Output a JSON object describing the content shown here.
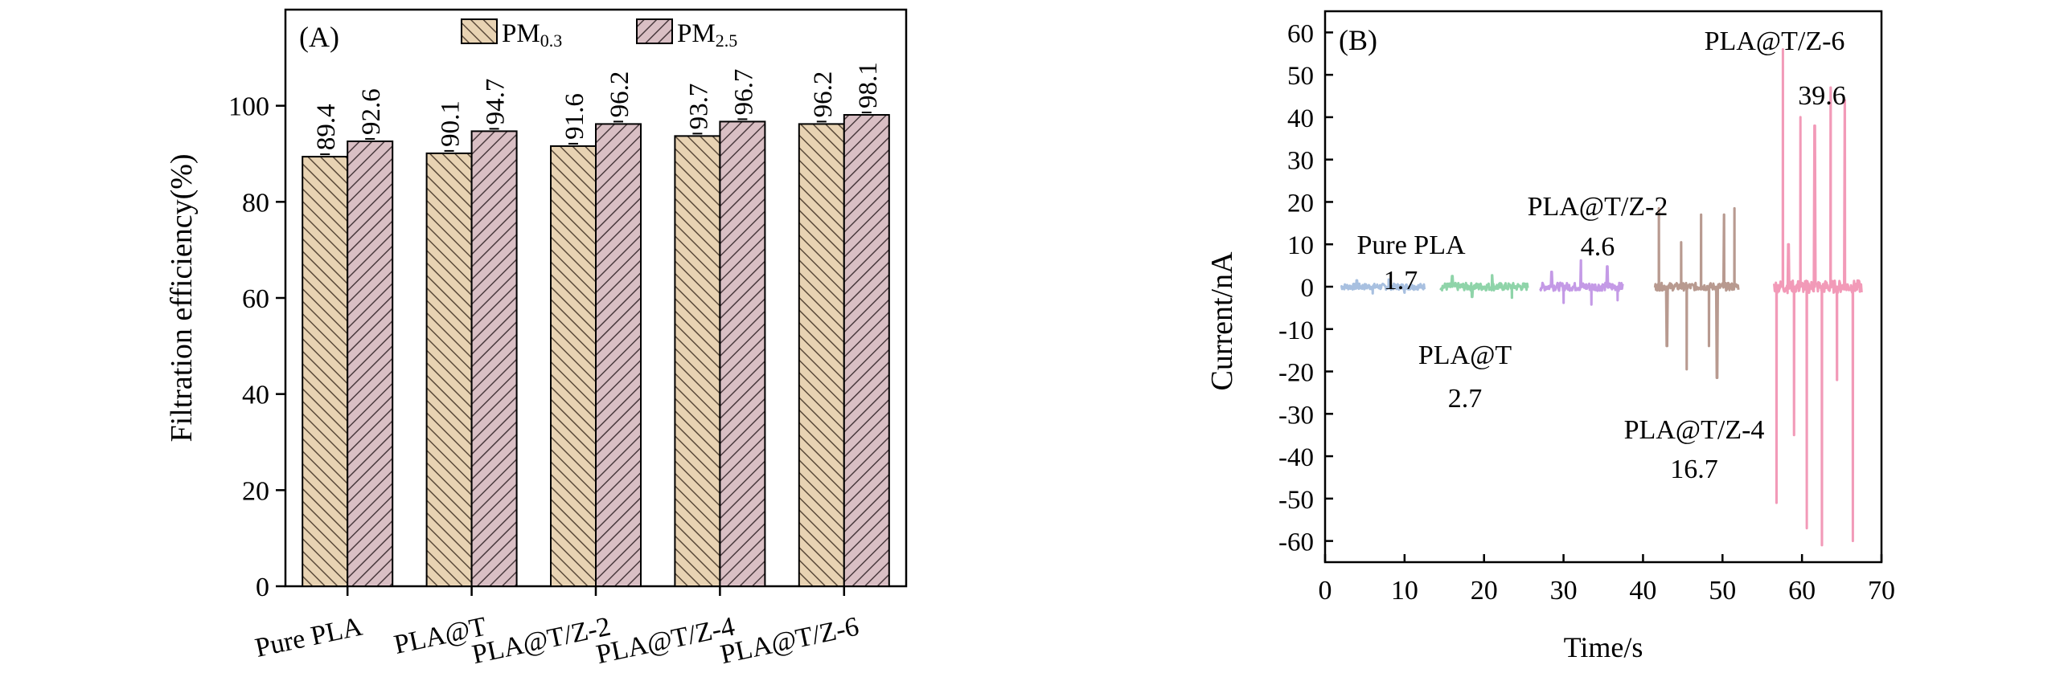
{
  "chart_data": [
    {
      "type": "bar",
      "panel_label": "(A)",
      "ylabel": "Filtration efficiency(%)",
      "ylim": [
        0,
        120
      ],
      "yticks": [
        0,
        20,
        40,
        60,
        80,
        100
      ],
      "categories": [
        "Pure PLA",
        "PLA@T",
        "PLA@T/Z-2",
        "PLA@T/Z-4",
        "PLA@T/Z-6"
      ],
      "series": [
        {
          "name_base": "PM",
          "name_sub": "0.3",
          "values": [
            89.4,
            90.1,
            91.6,
            93.7,
            96.2
          ],
          "labels": [
            "89.4",
            "90.1",
            "91.6",
            "93.7",
            "96.2"
          ],
          "color": "#e8d3b3",
          "hatch": "#5a4a3a"
        },
        {
          "name_base": "PM",
          "name_sub": "2.5",
          "values": [
            92.6,
            94.7,
            96.2,
            96.7,
            98.1
          ],
          "labels": [
            "92.6",
            "94.7",
            "96.2",
            "96.7",
            "98.1"
          ],
          "color": "#d9bfc4",
          "hatch": "#4a3a3e"
        }
      ],
      "legend_position": "top"
    },
    {
      "type": "line",
      "panel_label": "(B)",
      "xlabel": "Time/s",
      "ylabel": "Current/nA",
      "xlim": [
        0,
        70
      ],
      "ylim": [
        -65,
        65
      ],
      "xticks": [
        0,
        10,
        20,
        30,
        40,
        50,
        60,
        70
      ],
      "yticks": [
        -60,
        -50,
        -40,
        -30,
        -20,
        -10,
        0,
        10,
        20,
        30,
        40,
        50,
        60
      ],
      "series": [
        {
          "name": "Pure PLA",
          "value_label": "1.7",
          "color": "#a8c0e0",
          "x_range": [
            2,
            12.5
          ],
          "amp": 1.7,
          "noise": 1.2,
          "spikes": [
            [
              4,
              1.5
            ],
            [
              6,
              -1.6
            ],
            [
              8,
              1.7
            ],
            [
              10,
              -1.4
            ]
          ]
        },
        {
          "name": "PLA@T",
          "value_label": "2.7",
          "color": "#8fd4a9",
          "x_range": [
            14.5,
            25.5
          ],
          "amp": 2.7,
          "noise": 1.5,
          "spikes": [
            [
              16,
              2.5
            ],
            [
              18.5,
              -2.4
            ],
            [
              21,
              2.7
            ],
            [
              23.5,
              -2.6
            ]
          ]
        },
        {
          "name": "PLA@T/Z-2",
          "value_label": "4.6",
          "color": "#c49ae6",
          "x_range": [
            27,
            37.5
          ],
          "amp": 4.6,
          "noise": 1.6,
          "spikes": [
            [
              28.5,
              3.5
            ],
            [
              30,
              -3.8
            ],
            [
              32.2,
              6.2
            ],
            [
              33.5,
              -4.2
            ],
            [
              35.5,
              4.8
            ],
            [
              36.8,
              -3.2
            ]
          ]
        },
        {
          "name": "PLA@T/Z-4",
          "value_label": "16.7",
          "color": "#b89a90",
          "x_range": [
            41.5,
            52
          ],
          "amp": 16.7,
          "noise": 1.5,
          "spikes": [
            [
              42,
              18.5
            ],
            [
              43,
              -14
            ],
            [
              44.8,
              10.5
            ],
            [
              45.5,
              -19.5
            ],
            [
              47.3,
              17
            ],
            [
              48.3,
              -14
            ],
            [
              49.3,
              -21.5
            ],
            [
              50.2,
              17
            ],
            [
              51.5,
              18.5
            ]
          ]
        },
        {
          "name": "PLA@T/Z-6",
          "value_label": "39.6",
          "color": "#f29ab8",
          "x_range": [
            56.5,
            67.5
          ],
          "amp": 39.6,
          "noise": 2.5,
          "spikes": [
            [
              56.8,
              -51
            ],
            [
              57.6,
              56
            ],
            [
              58.3,
              10
            ],
            [
              59,
              -35
            ],
            [
              59.8,
              40
            ],
            [
              60.6,
              -57
            ],
            [
              61.6,
              38
            ],
            [
              62.5,
              -61
            ],
            [
              63.6,
              47
            ],
            [
              64.4,
              -22
            ],
            [
              65.4,
              44
            ],
            [
              66.4,
              -60
            ]
          ]
        }
      ]
    }
  ]
}
